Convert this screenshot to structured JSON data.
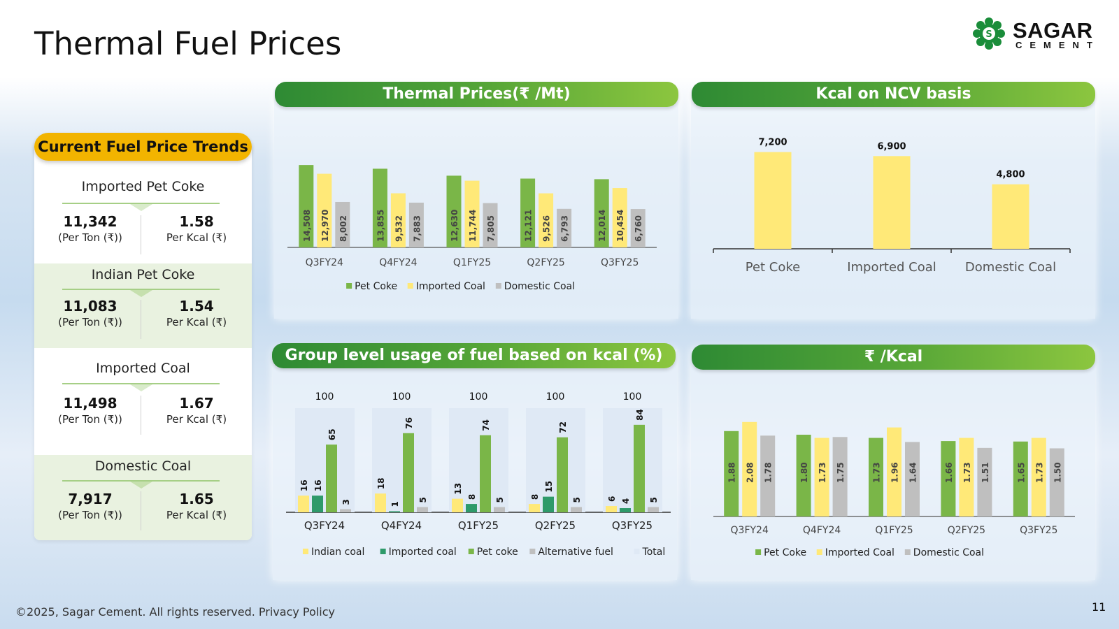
{
  "page": {
    "title": "Thermal Fuel Prices",
    "footer": "©2025, Sagar Cement. All rights reserved. Privacy Policy",
    "page_number": "11"
  },
  "logo": {
    "name": "SAGAR",
    "sub": "CEMENT",
    "letter": "S"
  },
  "trends": {
    "badge": "Current Fuel Price Trends",
    "items": [
      {
        "name": "Imported Pet Coke",
        "per_ton": "11,342",
        "per_ton_label": "(Per Ton (₹))",
        "per_kcal": "1.58",
        "per_kcal_label": "Per Kcal (₹)"
      },
      {
        "name": "Indian Pet Coke",
        "per_ton": "11,083",
        "per_ton_label": "(Per Ton (₹))",
        "per_kcal": "1.54",
        "per_kcal_label": "Per Kcal (₹)"
      },
      {
        "name": "Imported Coal",
        "per_ton": "11,498",
        "per_ton_label": "(Per Ton (₹))",
        "per_kcal": "1.67",
        "per_kcal_label": "Per Kcal (₹)"
      },
      {
        "name": "Domestic Coal",
        "per_ton": "7,917",
        "per_ton_label": "(Per Ton (₹))",
        "per_kcal": "1.65",
        "per_kcal_label": "Per Kcal (₹)"
      }
    ]
  },
  "colors": {
    "green": "#7ab648",
    "yellow": "#ffe978",
    "gray": "#bfbfbf",
    "dark_green": "#2e9a6a",
    "light_blue": "#dfe9f5",
    "accent": "#f2b400"
  },
  "chart_data": [
    {
      "id": "thermal",
      "type": "bar",
      "title": "Thermal Prices(₹ /Mt)",
      "categories": [
        "Q3FY24",
        "Q4FY24",
        "Q1FY25",
        "Q2FY25",
        "Q3FY25"
      ],
      "series": [
        {
          "name": "Pet Coke",
          "values": [
            14508,
            13855,
            12630,
            12121,
            12014
          ],
          "labels": [
            "14,508",
            "13,855",
            "12,630",
            "12,121",
            "12,014"
          ]
        },
        {
          "name": "Imported Coal",
          "values": [
            12970,
            9532,
            11744,
            9526,
            10454
          ],
          "labels": [
            "12,970",
            "9,532",
            "11,744",
            "9,526",
            "10,454"
          ]
        },
        {
          "name": "Domestic Coal",
          "values": [
            8002,
            7883,
            7805,
            6793,
            6760
          ],
          "labels": [
            "8,002",
            "7,883",
            "7,805",
            "6,793",
            "6,760"
          ]
        }
      ],
      "ylim": [
        0,
        16000
      ],
      "legend": "bottom"
    },
    {
      "id": "kcal",
      "type": "bar",
      "title": "Kcal on NCV basis",
      "categories": [
        "Pet Coke",
        "Imported Coal",
        "Domestic Coal"
      ],
      "values": [
        7200,
        6900,
        4800
      ],
      "labels": [
        "7,200",
        "6,900",
        "4,800"
      ],
      "ylim": [
        0,
        7800
      ]
    },
    {
      "id": "usage",
      "type": "bar",
      "title": "Group level usage of fuel based on kcal (%)",
      "categories": [
        "Q3FY24",
        "Q4FY24",
        "Q1FY25",
        "Q2FY25",
        "Q3FY25"
      ],
      "series": [
        {
          "name": "Indian coal",
          "values": [
            16,
            18,
            13,
            8,
            6
          ]
        },
        {
          "name": "Imported coal",
          "values": [
            16,
            1,
            8,
            15,
            4
          ]
        },
        {
          "name": "Pet coke",
          "values": [
            65,
            76,
            74,
            72,
            84
          ]
        },
        {
          "name": "Alternative fuel",
          "values": [
            3,
            5,
            5,
            5,
            5
          ]
        },
        {
          "name": "Total",
          "values": [
            100,
            100,
            100,
            100,
            100
          ]
        }
      ],
      "ylim": [
        0,
        100
      ],
      "legend": "bottom"
    },
    {
      "id": "rskcal",
      "type": "bar",
      "title": "₹ /Kcal",
      "categories": [
        "Q3FY24",
        "Q4FY24",
        "Q1FY25",
        "Q2FY25",
        "Q3FY25"
      ],
      "series": [
        {
          "name": "Pet Coke",
          "values": [
            1.88,
            1.8,
            1.73,
            1.66,
            1.65
          ],
          "labels": [
            "1.88",
            "1.80",
            "1.73",
            "1.66",
            "1.65"
          ]
        },
        {
          "name": "Imported Coal",
          "values": [
            2.08,
            1.73,
            1.96,
            1.73,
            1.73
          ],
          "labels": [
            "2.08",
            "1.73",
            "1.96",
            "1.73",
            "1.73"
          ]
        },
        {
          "name": "Domestic Coal",
          "values": [
            1.78,
            1.75,
            1.64,
            1.51,
            1.5
          ],
          "labels": [
            "1.78",
            "1.75",
            "1.64",
            "1.51",
            "1.50"
          ]
        }
      ],
      "ylim": [
        0,
        2.2
      ],
      "legend": "bottom"
    }
  ]
}
